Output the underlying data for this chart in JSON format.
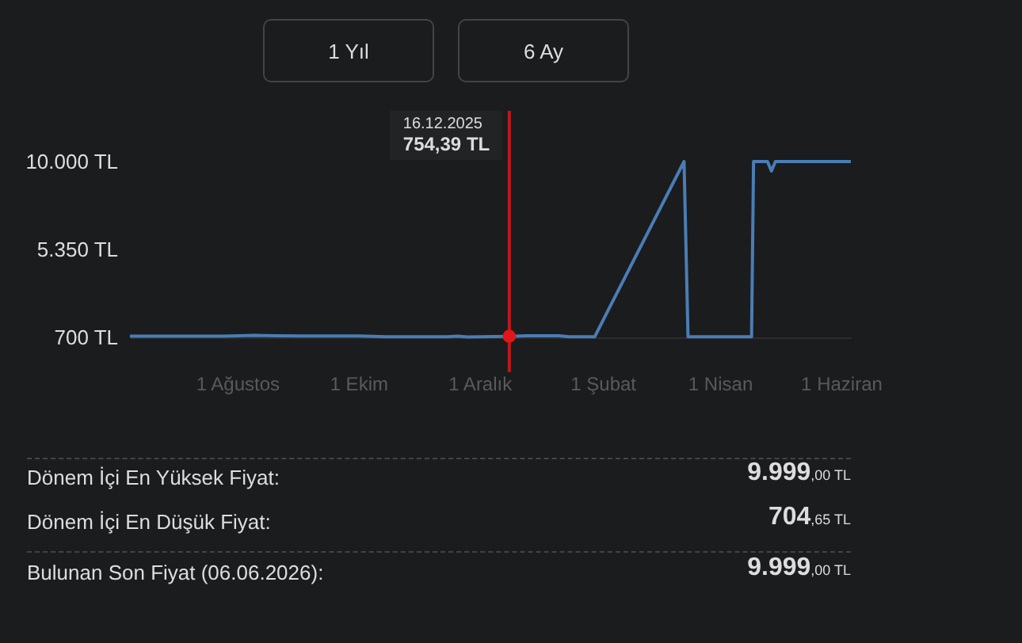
{
  "chart_data": {
    "type": "line",
    "x": [
      "2025-06-08",
      "2025-07-25",
      "2025-08-10",
      "2025-08-20",
      "2025-09-01",
      "2025-10-01",
      "2025-10-15",
      "2025-11-15",
      "2025-11-20",
      "2025-11-25",
      "2025-12-16",
      "2025-12-25",
      "2026-01-10",
      "2026-01-15",
      "2026-01-28",
      "2026-03-14",
      "2026-03-16",
      "2026-04-17",
      "2026-04-18",
      "2026-04-25",
      "2026-04-27",
      "2026-04-29",
      "2026-06-06"
    ],
    "series": [
      {
        "color": "#4a7db5",
        "values": [
          760,
          760,
          800,
          780,
          770,
          770,
          730,
          730,
          760,
          720,
          754.39,
          780,
          780,
          730,
          730,
          9999,
          730,
          730,
          9999,
          9999,
          9500,
          9999,
          9999
        ]
      },
      {
        "type": "scatter",
        "color": "#e0161b",
        "x": [
          "2025-12-16"
        ],
        "values": [
          754.39
        ]
      }
    ],
    "xlim": [
      "2025-06-08",
      "2026-06-06"
    ],
    "ylim": [
      700,
      10000
    ],
    "xticks": [
      {
        "value": "2025-08-01",
        "label": "1 Ağustos"
      },
      {
        "value": "2025-10-01",
        "label": "1 Ekim"
      },
      {
        "value": "2025-12-01",
        "label": "1 Aralık"
      },
      {
        "value": "2026-02-01",
        "label": "1 Şubat"
      },
      {
        "value": "2026-04-01",
        "label": "1 Nisan"
      },
      {
        "value": "2026-06-01",
        "label": "1 Haziran"
      }
    ],
    "yticks": [
      {
        "value": 700,
        "label": "700 TL"
      },
      {
        "value": 5350,
        "label": "5.350 TL"
      },
      {
        "value": 10000,
        "label": "10.000 TL"
      }
    ],
    "ref_lines": [
      {
        "axis": "x",
        "value": "2025-12-16",
        "color": "#c0161b"
      }
    ],
    "annotations": [
      "16.12.2025",
      "754,39 TL",
      "1 Yıl",
      "6 Ay",
      "Dönem İçi En Yüksek Fiyat:",
      "9.999,00 TL",
      "Dönem İçi En Düşük Fiyat:",
      "704,65 TL",
      "Bulunan Son Fiyat (06.06.2026):",
      "9.999,00 TL"
    ],
    "grid": false
  }
}
